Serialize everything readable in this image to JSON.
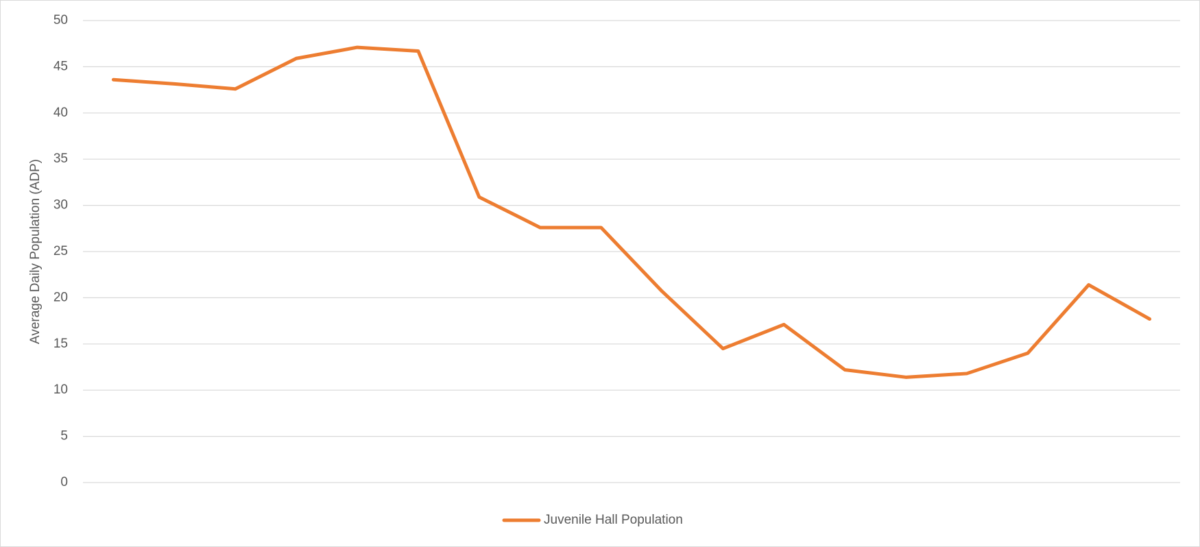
{
  "chart_data": {
    "type": "line",
    "y_label": "Average Daily Population (ADP)",
    "categories": [
      null,
      null,
      null,
      null,
      null,
      null,
      null,
      null,
      null,
      null,
      null,
      null,
      null,
      null,
      null,
      null,
      null,
      null
    ],
    "series": [
      {
        "name": "Juvenile Hall Population",
        "color": "#ed7d31",
        "values": [
          43.6,
          43.15,
          42.6,
          45.9,
          47.1,
          46.7,
          30.9,
          27.6,
          27.6,
          20.7,
          14.5,
          17.1,
          12.2,
          11.4,
          11.8,
          14.0,
          21.4,
          17.7
        ]
      }
    ],
    "ylim": [
      0,
      50
    ],
    "yticks": [
      0,
      5,
      10,
      15,
      20,
      25,
      30,
      35,
      40,
      45,
      50
    ],
    "grid": true,
    "legend": "bottom"
  }
}
